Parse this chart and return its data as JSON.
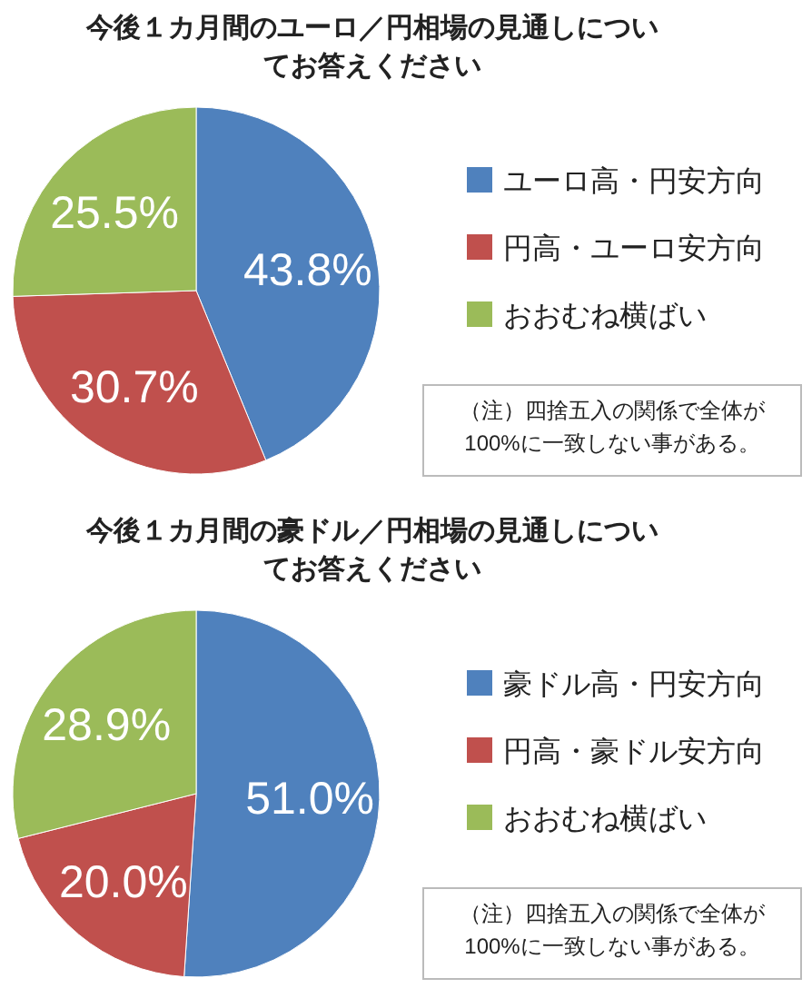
{
  "chart_data": [
    {
      "type": "pie",
      "title": "今後１カ月間のユーロ／円相場の見通しについてお答えください",
      "categories": [
        "ユーロ高・円安方向",
        "円高・ユーロ安方向",
        "おおむね横ばい"
      ],
      "values": [
        43.8,
        30.7,
        25.5
      ],
      "colors": [
        "#4f81bd",
        "#c0504d",
        "#9bbb59"
      ],
      "value_labels": [
        "43.8%",
        "30.7%",
        "25.5%"
      ],
      "legend": "right",
      "annotations": [
        "（注）四捨五入の関係で全体が\n100%に一致しない事がある。"
      ]
    },
    {
      "type": "pie",
      "title": "今後１カ月間の豪ドル／円相場の見通しについてお答えください",
      "categories": [
        "豪ドル高・円安方向",
        "円高・豪ドル安方向",
        "おおむね横ばい"
      ],
      "values": [
        51.0,
        20.0,
        28.9
      ],
      "colors": [
        "#4f81bd",
        "#c0504d",
        "#9bbb59"
      ],
      "value_labels": [
        "51.0%",
        "20.0%",
        "28.9%"
      ],
      "legend": "right",
      "annotations": [
        "（注）四捨五入の関係で全体が\n100%に一致しない事がある。"
      ]
    }
  ]
}
